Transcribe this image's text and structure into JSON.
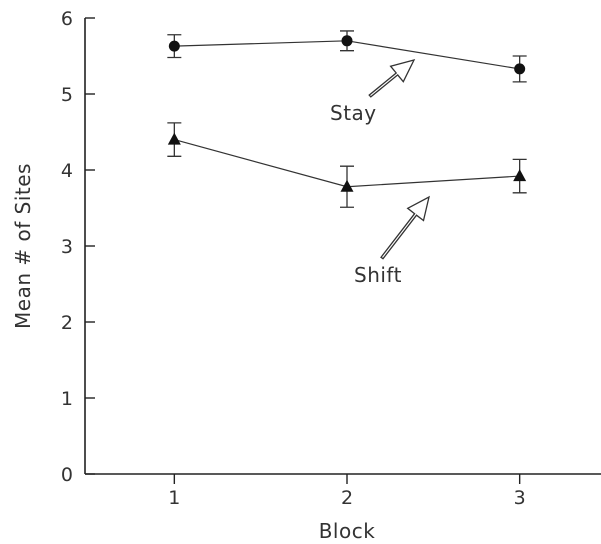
{
  "chart_data": {
    "type": "line",
    "title": "",
    "xlabel": "Block",
    "ylabel": "Mean # of Sites",
    "x": [
      1,
      2,
      3
    ],
    "xticks": [
      "1",
      "2",
      "3"
    ],
    "xlim": [
      0.5,
      3.5
    ],
    "yticks": [
      "0",
      "1",
      "2",
      "3",
      "4",
      "5",
      "6"
    ],
    "ylim": [
      0,
      6
    ],
    "grid": false,
    "series": [
      {
        "name": "Stay",
        "marker": "circle",
        "values": [
          5.63,
          5.7,
          5.33
        ],
        "error": [
          0.15,
          0.13,
          0.17
        ]
      },
      {
        "name": "Shift",
        "marker": "triangle",
        "values": [
          4.4,
          3.78,
          3.92
        ],
        "error": [
          0.22,
          0.27,
          0.22
        ]
      }
    ],
    "annotations": [
      {
        "text": "Stay",
        "series": "Stay"
      },
      {
        "text": "Shift",
        "series": "Shift"
      }
    ]
  }
}
